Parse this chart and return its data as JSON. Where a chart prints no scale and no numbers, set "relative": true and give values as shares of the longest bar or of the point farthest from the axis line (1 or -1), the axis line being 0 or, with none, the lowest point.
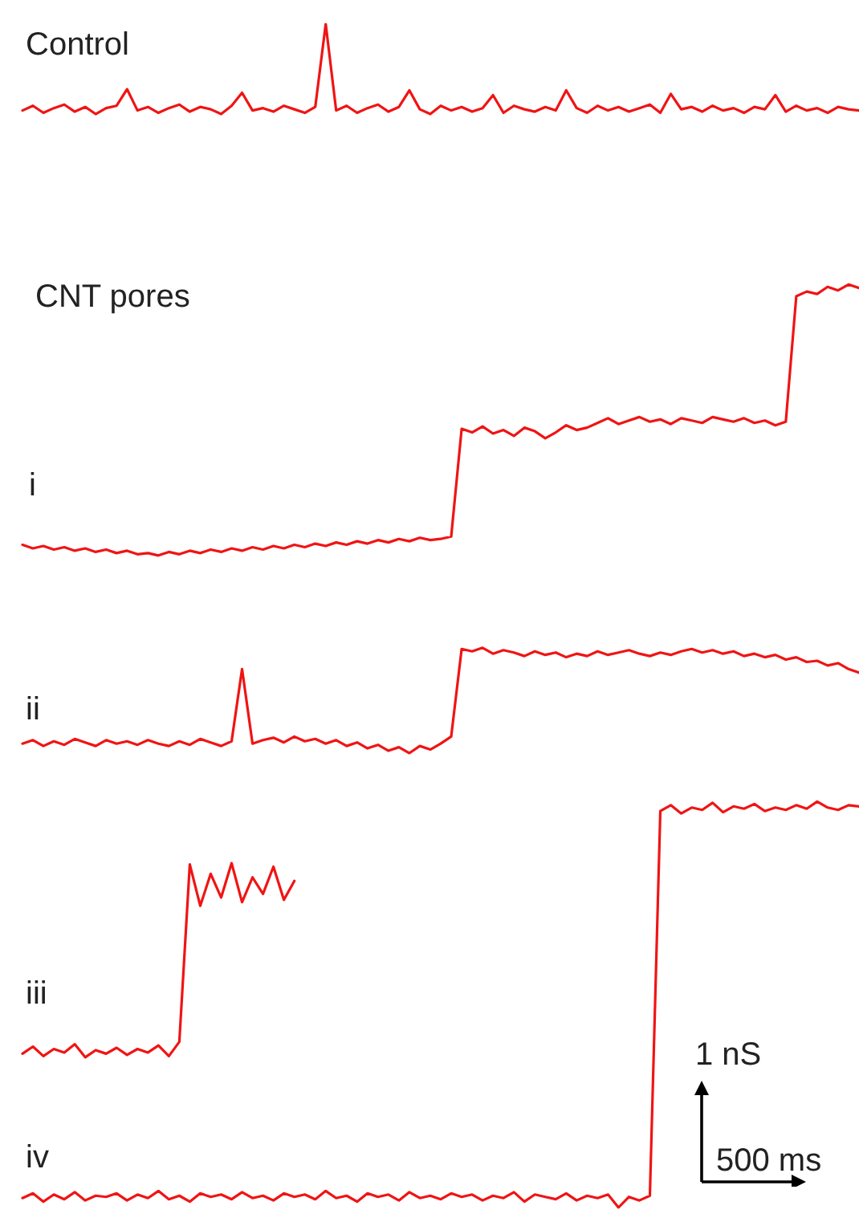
{
  "chart_data": {
    "type": "line",
    "relative": true,
    "legend": false,
    "grid": false,
    "tick_labels": false,
    "marker": "none",
    "line_style": "solid",
    "annotations": [
      "CNT pores",
      "1 nS",
      "500 ms"
    ],
    "categories": [
      null,
      null,
      null,
      null,
      null,
      null,
      null,
      null,
      null,
      null,
      null,
      null,
      null,
      null,
      null,
      null,
      null,
      null,
      null,
      null,
      null,
      null,
      null,
      null,
      null,
      null,
      null,
      null,
      null,
      null,
      null,
      null,
      null,
      null,
      null,
      null,
      null,
      null,
      null,
      null,
      null,
      null,
      null,
      null,
      null,
      null,
      null,
      null,
      null,
      null,
      null,
      null,
      null,
      null,
      null,
      null,
      null,
      null,
      null,
      null,
      null,
      null,
      null,
      null,
      null,
      null,
      null,
      null,
      null,
      null,
      null,
      null,
      null,
      null,
      null,
      null,
      null,
      null,
      null,
      null,
      null
    ],
    "series": [
      {
        "name": "Control",
        "color": "#f01414",
        "values": [
          0.927,
          0.931,
          0.925,
          0.929,
          0.932,
          0.926,
          0.93,
          0.924,
          0.929,
          0.931,
          0.945,
          0.927,
          0.93,
          0.925,
          0.929,
          0.932,
          0.926,
          0.93,
          0.928,
          0.924,
          0.931,
          0.942,
          0.927,
          0.929,
          0.926,
          0.931,
          0.928,
          0.925,
          0.93,
          1.0,
          0.927,
          0.931,
          0.925,
          0.929,
          0.932,
          0.926,
          0.93,
          0.944,
          0.928,
          0.924,
          0.931,
          0.927,
          0.93,
          0.926,
          0.929,
          0.94,
          0.925,
          0.931,
          0.928,
          0.926,
          0.93,
          0.927,
          0.944,
          0.929,
          0.925,
          0.931,
          0.927,
          0.93,
          0.926,
          0.929,
          0.932,
          0.925,
          0.941,
          0.928,
          0.93,
          0.926,
          0.931,
          0.927,
          0.929,
          0.925,
          0.93,
          0.928,
          0.94,
          0.926,
          0.931,
          0.927,
          0.929,
          0.925,
          0.93,
          0.928,
          0.927
        ]
      },
      {
        "name": "i",
        "color": "#f01414",
        "values": [
          0.56,
          0.557,
          0.559,
          0.556,
          0.558,
          0.555,
          0.557,
          0.554,
          0.556,
          0.553,
          0.555,
          0.552,
          0.553,
          0.551,
          0.554,
          0.552,
          0.555,
          0.553,
          0.556,
          0.554,
          0.557,
          0.555,
          0.558,
          0.556,
          0.559,
          0.557,
          0.56,
          0.558,
          0.561,
          0.559,
          0.562,
          0.56,
          0.563,
          0.561,
          0.564,
          0.562,
          0.565,
          0.563,
          0.566,
          0.564,
          0.565,
          0.567,
          0.658,
          0.655,
          0.66,
          0.654,
          0.657,
          0.652,
          0.659,
          0.656,
          0.65,
          0.655,
          0.661,
          0.657,
          0.659,
          0.663,
          0.667,
          0.662,
          0.665,
          0.668,
          0.664,
          0.666,
          0.662,
          0.667,
          0.665,
          0.663,
          0.668,
          0.666,
          0.664,
          0.667,
          0.663,
          0.665,
          0.661,
          0.664,
          0.77,
          0.774,
          0.772,
          0.778,
          0.775,
          0.78,
          0.777
        ]
      },
      {
        "name": "ii",
        "color": "#f01414",
        "values": [
          0.392,
          0.395,
          0.39,
          0.394,
          0.391,
          0.396,
          0.393,
          0.39,
          0.395,
          0.392,
          0.394,
          0.391,
          0.395,
          0.392,
          0.39,
          0.394,
          0.391,
          0.396,
          0.393,
          0.39,
          0.394,
          0.455,
          0.392,
          0.395,
          0.397,
          0.393,
          0.398,
          0.394,
          0.396,
          0.392,
          0.395,
          0.39,
          0.393,
          0.388,
          0.391,
          0.386,
          0.389,
          0.384,
          0.39,
          0.387,
          0.392,
          0.398,
          0.472,
          0.47,
          0.473,
          0.468,
          0.471,
          0.469,
          0.466,
          0.47,
          0.467,
          0.469,
          0.465,
          0.468,
          0.466,
          0.47,
          0.467,
          0.469,
          0.471,
          0.468,
          0.466,
          0.469,
          0.467,
          0.47,
          0.472,
          0.469,
          0.471,
          0.468,
          0.47,
          0.466,
          0.468,
          0.465,
          0.467,
          0.463,
          0.465,
          0.461,
          0.462,
          0.458,
          0.46,
          0.455,
          0.452
        ]
      },
      {
        "name": "iii",
        "color": "#f01414",
        "values": [
          0.13,
          0.136,
          0.128,
          0.134,
          0.131,
          0.138,
          0.127,
          0.133,
          0.13,
          0.135,
          0.129,
          0.134,
          0.131,
          0.137,
          0.128,
          0.14,
          0.29,
          0.255,
          0.282,
          0.262,
          0.291,
          0.258,
          0.279,
          0.265,
          0.288,
          0.26,
          0.276,
          null,
          null,
          null,
          null,
          null,
          null,
          null,
          null,
          null,
          null,
          null,
          null,
          null,
          null,
          null,
          null,
          null,
          null,
          null,
          null,
          null,
          null,
          null,
          null,
          null,
          null,
          null,
          null,
          null,
          null,
          null,
          null,
          null,
          null,
          null,
          null,
          null,
          null,
          null,
          null,
          null,
          null,
          null,
          null,
          null,
          null,
          null,
          null,
          null,
          null,
          null,
          null,
          null,
          null
        ]
      },
      {
        "name": "iv",
        "color": "#f01414",
        "values": [
          0.008,
          0.012,
          0.005,
          0.011,
          0.007,
          0.013,
          0.006,
          0.01,
          0.009,
          0.012,
          0.006,
          0.011,
          0.008,
          0.014,
          0.007,
          0.01,
          0.005,
          0.012,
          0.009,
          0.011,
          0.007,
          0.013,
          0.008,
          0.01,
          0.006,
          0.012,
          0.009,
          0.011,
          0.007,
          0.014,
          0.008,
          0.01,
          0.005,
          0.012,
          0.009,
          0.011,
          0.006,
          0.013,
          0.008,
          0.01,
          0.007,
          0.012,
          0.009,
          0.011,
          0.006,
          0.01,
          0.008,
          0.013,
          0.005,
          0.011,
          0.009,
          0.007,
          0.012,
          0.006,
          0.01,
          0.008,
          0.011,
          0.0,
          0.009,
          0.006,
          0.01,
          0.335,
          0.34,
          0.333,
          0.338,
          0.336,
          0.342,
          0.334,
          0.339,
          0.337,
          0.341,
          0.335,
          0.338,
          0.336,
          0.34,
          0.337,
          0.343,
          0.338,
          0.336,
          0.34,
          0.339
        ]
      }
    ]
  }
}
